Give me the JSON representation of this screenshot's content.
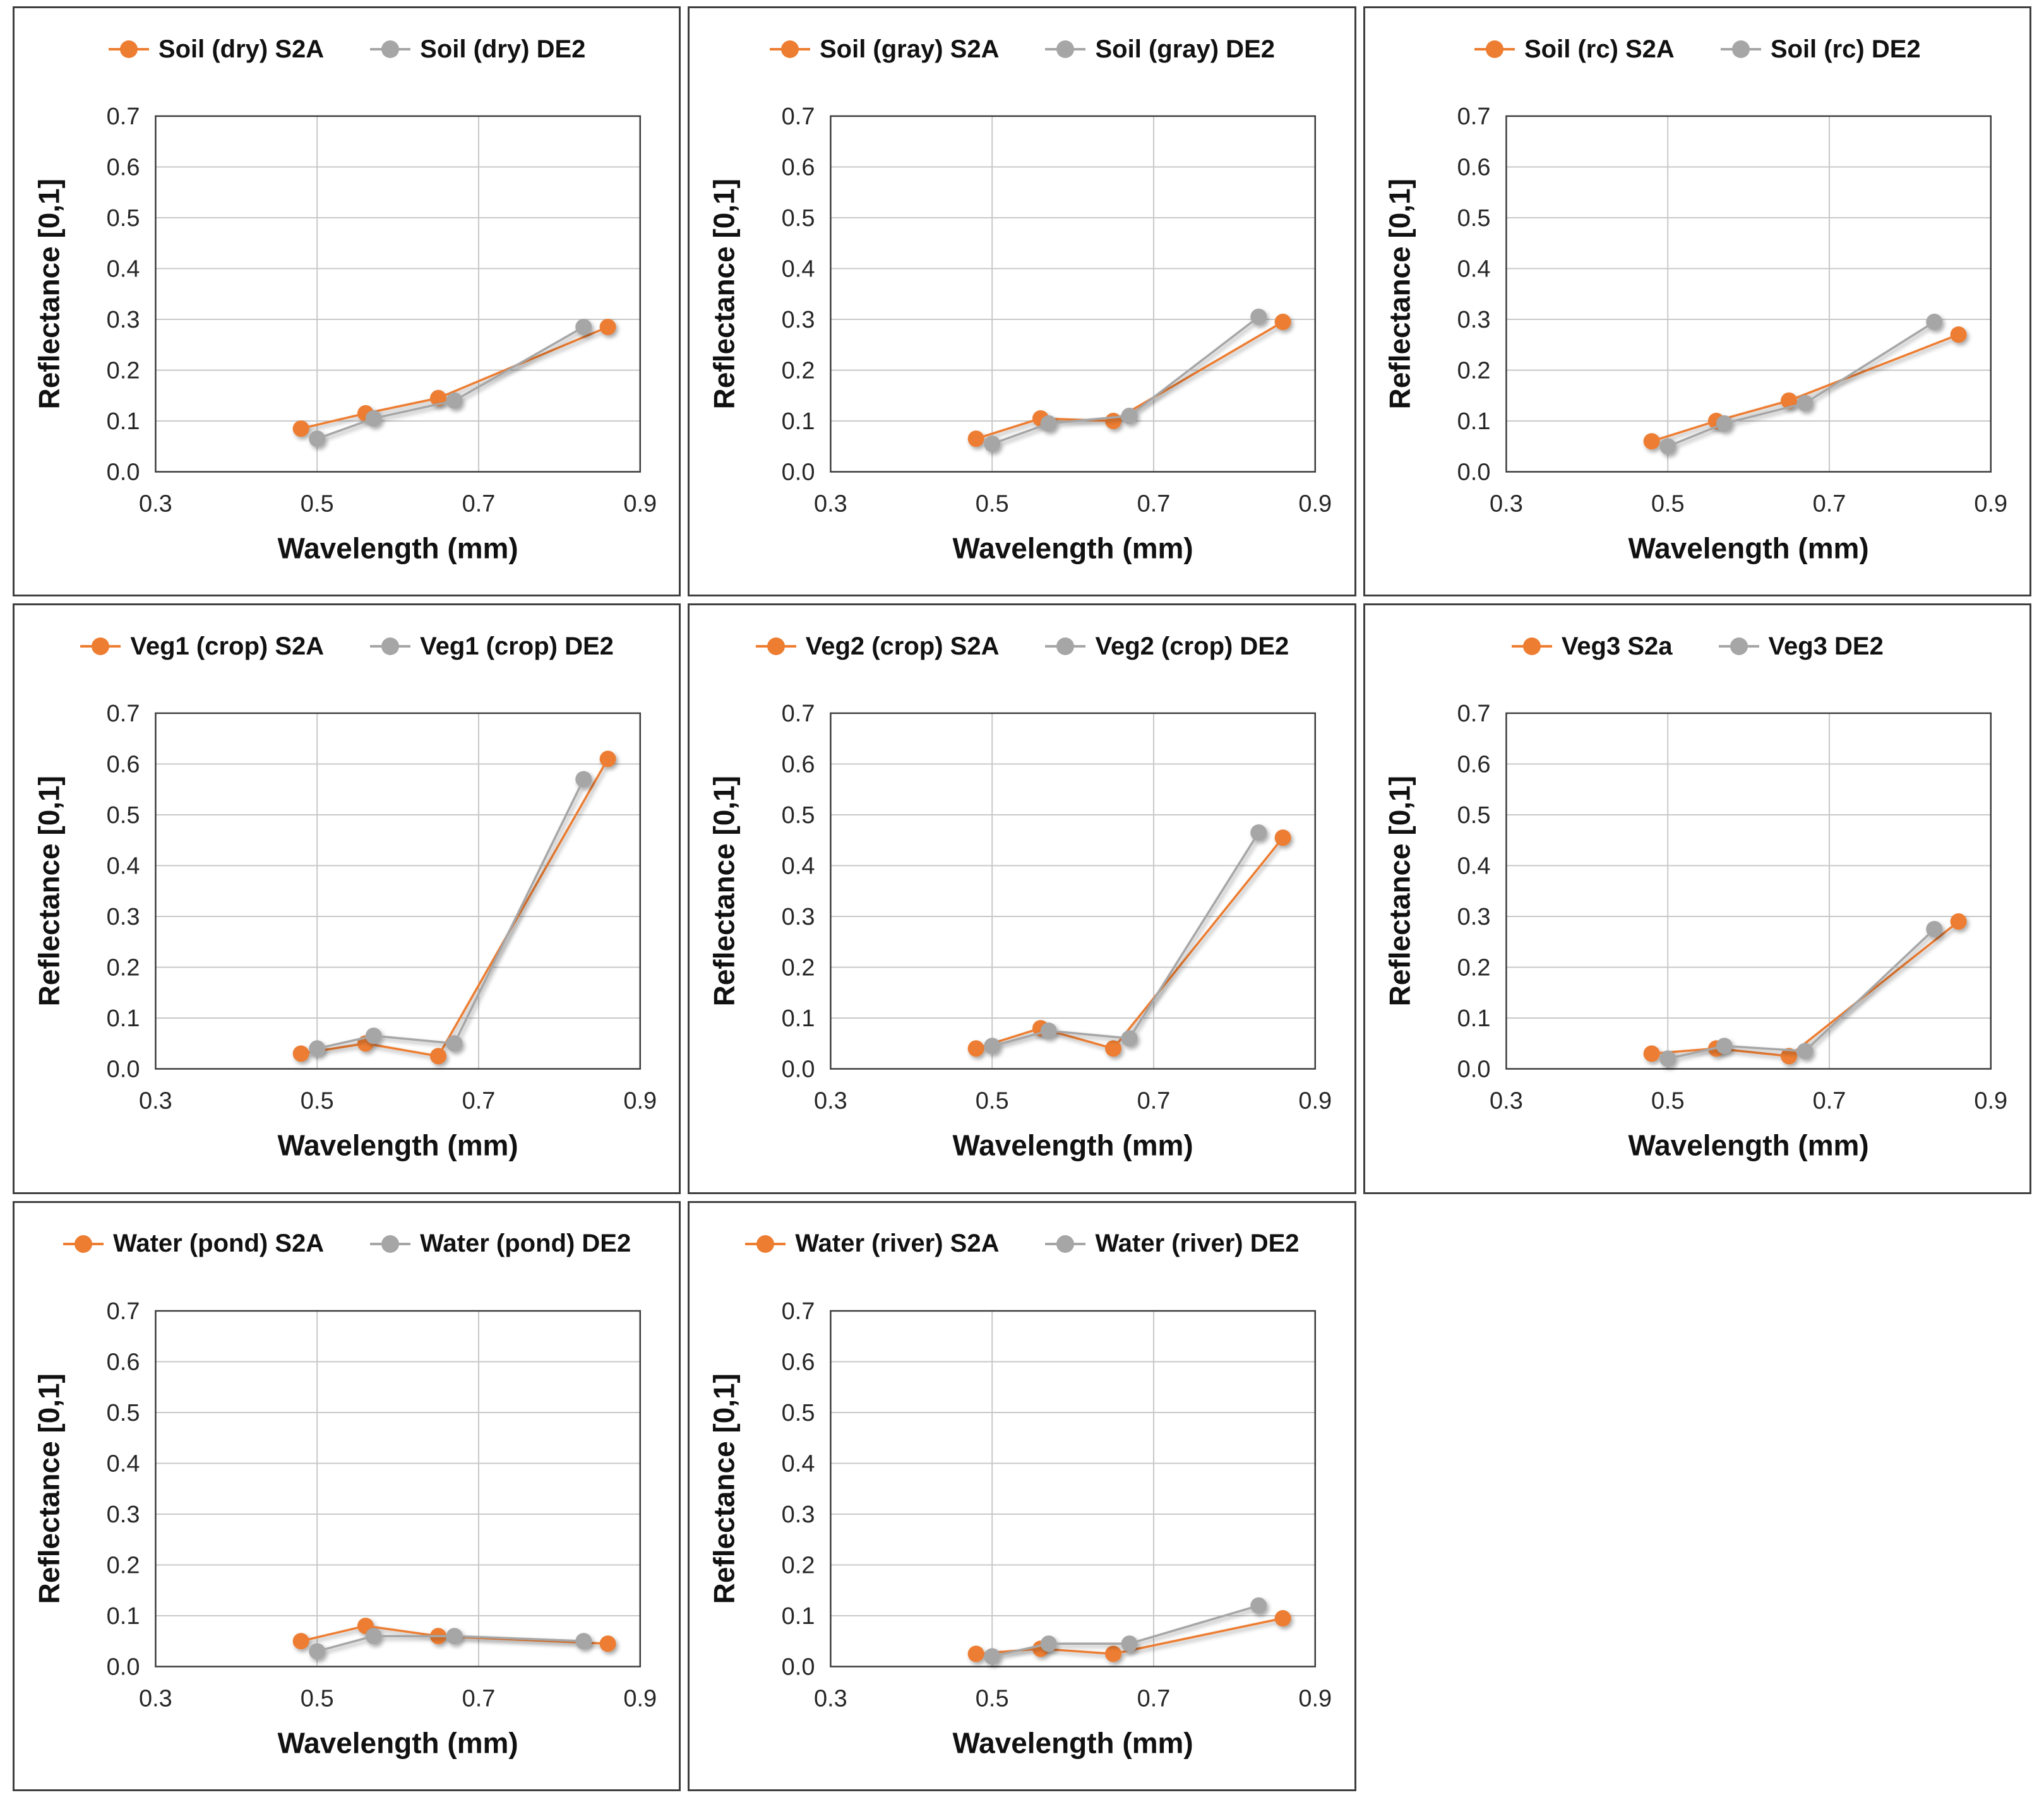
{
  "colors": {
    "s2a_orange": "#ED7D31",
    "de2_gray": "#A6A6A6",
    "gridline": "#C8C8C8",
    "plot_frame": "#3C3C3C",
    "panel_border": "#3F3F3F",
    "text": "#111111",
    "tick_text": "#262626",
    "background": "#FFFFFF"
  },
  "axes": {
    "x_title": "Wavelength (mm)",
    "y_title": "Reflectance [0,1]",
    "x_ticks": [
      "0.3",
      "0.5",
      "0.7",
      "0.9"
    ],
    "y_ticks": [
      "0.7",
      "0.6",
      "0.5",
      "0.4",
      "0.3",
      "0.2",
      "0.1",
      "0.0"
    ],
    "x_range": [
      0.3,
      0.9
    ],
    "y_range": [
      0.0,
      0.7
    ],
    "x_gridlines_at": [
      0.5,
      0.7
    ],
    "y_gridline_step": 0.1,
    "grid": "on",
    "legend_position": "top-center"
  },
  "chart_data": [
    {
      "type": "line",
      "panel_id": "soil-dry",
      "legend": [
        "Soil (dry) S2A",
        "Soil (dry) DE2"
      ],
      "xlabel": "Wavelength (mm)",
      "ylabel": "Reflectance [0,1]",
      "xlim": [
        0.3,
        0.9
      ],
      "ylim": [
        0.0,
        0.7
      ],
      "series": [
        {
          "name": "Soil (dry) S2A",
          "color": "#ED7D31",
          "x": [
            0.48,
            0.56,
            0.65,
            0.86
          ],
          "y": [
            0.085,
            0.115,
            0.145,
            0.285
          ]
        },
        {
          "name": "Soil (dry) DE2",
          "color": "#A6A6A6",
          "x": [
            0.5,
            0.57,
            0.67,
            0.83
          ],
          "y": [
            0.065,
            0.105,
            0.14,
            0.285
          ]
        }
      ]
    },
    {
      "type": "line",
      "panel_id": "soil-gray",
      "legend": [
        "Soil (gray) S2A",
        "Soil (gray) DE2"
      ],
      "xlabel": "Wavelength (mm)",
      "ylabel": "Reflectance [0,1]",
      "xlim": [
        0.3,
        0.9
      ],
      "ylim": [
        0.0,
        0.7
      ],
      "series": [
        {
          "name": "Soil (gray) S2A",
          "color": "#ED7D31",
          "x": [
            0.48,
            0.56,
            0.65,
            0.86
          ],
          "y": [
            0.065,
            0.105,
            0.1,
            0.295
          ]
        },
        {
          "name": "Soil (gray) DE2",
          "color": "#A6A6A6",
          "x": [
            0.5,
            0.57,
            0.67,
            0.83
          ],
          "y": [
            0.055,
            0.095,
            0.11,
            0.305
          ]
        }
      ]
    },
    {
      "type": "line",
      "panel_id": "soil-rc",
      "legend": [
        "Soil (rc) S2A",
        "Soil (rc) DE2"
      ],
      "xlabel": "Wavelength (mm)",
      "ylabel": "Reflectance [0,1]",
      "xlim": [
        0.3,
        0.9
      ],
      "ylim": [
        0.0,
        0.7
      ],
      "series": [
        {
          "name": "Soil (rc) S2A",
          "color": "#ED7D31",
          "x": [
            0.48,
            0.56,
            0.65,
            0.86
          ],
          "y": [
            0.06,
            0.1,
            0.14,
            0.27
          ]
        },
        {
          "name": "Soil (rc) DE2",
          "color": "#A6A6A6",
          "x": [
            0.5,
            0.57,
            0.67,
            0.83
          ],
          "y": [
            0.05,
            0.095,
            0.135,
            0.295
          ]
        }
      ]
    },
    {
      "type": "line",
      "panel_id": "veg1-crop",
      "legend": [
        "Veg1 (crop) S2A",
        "Veg1 (crop) DE2"
      ],
      "xlabel": "Wavelength (mm)",
      "ylabel": "Reflectance [0,1]",
      "xlim": [
        0.3,
        0.9
      ],
      "ylim": [
        0.0,
        0.7
      ],
      "series": [
        {
          "name": "Veg1 (crop) S2A",
          "color": "#ED7D31",
          "x": [
            0.48,
            0.56,
            0.65,
            0.86
          ],
          "y": [
            0.03,
            0.05,
            0.025,
            0.61
          ]
        },
        {
          "name": "Veg1 (crop) DE2",
          "color": "#A6A6A6",
          "x": [
            0.5,
            0.57,
            0.67,
            0.83
          ],
          "y": [
            0.04,
            0.065,
            0.05,
            0.57
          ]
        }
      ]
    },
    {
      "type": "line",
      "panel_id": "veg2-crop",
      "legend": [
        "Veg2 (crop) S2A",
        "Veg2 (crop) DE2"
      ],
      "xlabel": "Wavelength (mm)",
      "ylabel": "Reflectance [0,1]",
      "xlim": [
        0.3,
        0.9
      ],
      "ylim": [
        0.0,
        0.7
      ],
      "series": [
        {
          "name": "Veg2 (crop) S2A",
          "color": "#ED7D31",
          "x": [
            0.48,
            0.56,
            0.65,
            0.86
          ],
          "y": [
            0.04,
            0.08,
            0.04,
            0.455
          ]
        },
        {
          "name": "Veg2 (crop) DE2",
          "color": "#A6A6A6",
          "x": [
            0.5,
            0.57,
            0.67,
            0.83
          ],
          "y": [
            0.045,
            0.075,
            0.06,
            0.465
          ]
        }
      ]
    },
    {
      "type": "line",
      "panel_id": "veg3",
      "legend": [
        "Veg3 S2a",
        "Veg3 DE2"
      ],
      "xlabel": "Wavelength (mm)",
      "ylabel": "Reflectance [0,1]",
      "xlim": [
        0.3,
        0.9
      ],
      "ylim": [
        0.0,
        0.7
      ],
      "series": [
        {
          "name": "Veg3 S2a",
          "color": "#ED7D31",
          "x": [
            0.48,
            0.56,
            0.65,
            0.86
          ],
          "y": [
            0.03,
            0.04,
            0.025,
            0.29
          ]
        },
        {
          "name": "Veg3 DE2",
          "color": "#A6A6A6",
          "x": [
            0.5,
            0.57,
            0.67,
            0.83
          ],
          "y": [
            0.02,
            0.045,
            0.035,
            0.275
          ]
        }
      ]
    },
    {
      "type": "line",
      "panel_id": "water-pond",
      "legend": [
        "Water (pond) S2A",
        "Water (pond) DE2"
      ],
      "xlabel": "Wavelength (mm)",
      "ylabel": "Reflectance [0,1]",
      "xlim": [
        0.3,
        0.9
      ],
      "ylim": [
        0.0,
        0.7
      ],
      "series": [
        {
          "name": "Water (pond) S2A",
          "color": "#ED7D31",
          "x": [
            0.48,
            0.56,
            0.65,
            0.86
          ],
          "y": [
            0.05,
            0.08,
            0.06,
            0.045
          ]
        },
        {
          "name": "Water (pond) DE2",
          "color": "#A6A6A6",
          "x": [
            0.5,
            0.57,
            0.67,
            0.83
          ],
          "y": [
            0.03,
            0.06,
            0.06,
            0.05
          ]
        }
      ]
    },
    {
      "type": "line",
      "panel_id": "water-river",
      "legend": [
        "Water (river) S2A",
        "Water (river) DE2"
      ],
      "xlabel": "Wavelength (mm)",
      "ylabel": "Reflectance [0,1]",
      "xlim": [
        0.3,
        0.9
      ],
      "ylim": [
        0.0,
        0.7
      ],
      "series": [
        {
          "name": "Water (river) S2A",
          "color": "#ED7D31",
          "x": [
            0.48,
            0.56,
            0.65,
            0.86
          ],
          "y": [
            0.025,
            0.035,
            0.025,
            0.095
          ]
        },
        {
          "name": "Water (river) DE2",
          "color": "#A6A6A6",
          "x": [
            0.5,
            0.57,
            0.67,
            0.83
          ],
          "y": [
            0.02,
            0.045,
            0.045,
            0.12
          ]
        }
      ]
    }
  ]
}
